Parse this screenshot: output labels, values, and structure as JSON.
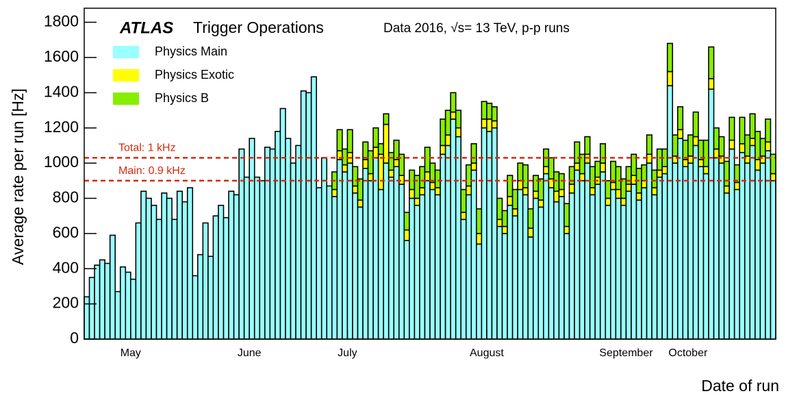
{
  "chart_data": {
    "type": "stacked_histogram",
    "experiment": "ATLAS",
    "title": "Trigger Operations",
    "annotation": "Data 2016, √s= 13 TeV, p-p runs",
    "y_label": "Average rate per run [Hz]",
    "x_label": "Date of run",
    "xlim": [
      0,
      134
    ],
    "xticks": [
      {
        "value": 9,
        "label": "May"
      },
      {
        "value": 32,
        "label": "June"
      },
      {
        "value": 51,
        "label": "July"
      },
      {
        "value": 78,
        "label": "August"
      },
      {
        "value": 105,
        "label": "September"
      },
      {
        "value": 117,
        "label": "October"
      }
    ],
    "ylim": [
      0,
      1880
    ],
    "yticks": [
      0,
      200,
      400,
      600,
      800,
      1000,
      1200,
      1400,
      1600,
      1800
    ],
    "reference_lines": [
      {
        "value": 1030,
        "label": "Total: 1 kHz",
        "color": "#d62a0a"
      },
      {
        "value": 900,
        "label": "Main: 0.9 kHz",
        "color": "#d62a0a"
      }
    ],
    "series": [
      {
        "name": "Physics Main",
        "color": "#99ffff",
        "values": [
          240,
          350,
          420,
          450,
          430,
          590,
          270,
          410,
          380,
          340,
          660,
          840,
          800,
          760,
          680,
          830,
          800,
          680,
          840,
          780,
          860,
          360,
          480,
          660,
          470,
          700,
          760,
          690,
          840,
          820,
          1080,
          920,
          1140,
          920,
          900,
          1090,
          1080,
          1180,
          1310,
          1140,
          1000,
          1100,
          1410,
          1400,
          1490,
          860,
          1030,
          870,
          810,
          1020,
          950,
          1000,
          830,
          750,
          970,
          900,
          1030,
          850,
          1000,
          920,
          980,
          880,
          560,
          800,
          760,
          820,
          900,
          850,
          820,
          1050,
          1100,
          1250,
          1150,
          680,
          820,
          960,
          540,
          1200,
          1180,
          1200,
          640,
          600,
          760,
          700,
          850,
          820,
          580,
          800,
          750,
          940,
          860,
          780,
          810,
          600,
          830,
          960,
          900,
          1000,
          820,
          880,
          950,
          760,
          850,
          800,
          760,
          840,
          880,
          790,
          860,
          1000,
          820,
          920,
          940,
          1440,
          1000,
          1140,
          980,
          1000,
          1100,
          980,
          940,
          1420,
          1030,
          1000,
          830,
          1080,
          850,
          1060,
          1000,
          1100,
          960,
          1000,
          1070,
          900
        ]
      },
      {
        "name": "Physics Exotic",
        "color": "#ffff00",
        "values": [
          0,
          0,
          0,
          0,
          0,
          0,
          0,
          0,
          0,
          0,
          0,
          0,
          0,
          0,
          0,
          0,
          0,
          0,
          0,
          0,
          0,
          0,
          0,
          0,
          0,
          0,
          0,
          0,
          0,
          0,
          0,
          0,
          0,
          0,
          0,
          0,
          0,
          0,
          0,
          0,
          0,
          0,
          0,
          0,
          0,
          0,
          0,
          0,
          40,
          50,
          40,
          60,
          40,
          40,
          50,
          40,
          60,
          200,
          220,
          40,
          40,
          50,
          60,
          50,
          40,
          40,
          50,
          40,
          40,
          50,
          60,
          40,
          50,
          40,
          50,
          40,
          60,
          50,
          70,
          40,
          40,
          40,
          50,
          40,
          50,
          40,
          50,
          40,
          40,
          40,
          50,
          60,
          40,
          40,
          50,
          40,
          40,
          50,
          40,
          40,
          50,
          40,
          40,
          50,
          40,
          40,
          50,
          40,
          40,
          50,
          40,
          40,
          40,
          80,
          40,
          50,
          40,
          40,
          50,
          40,
          40,
          60,
          50,
          40,
          40,
          50,
          40,
          50,
          40,
          40,
          60,
          40,
          50,
          40
        ]
      },
      {
        "name": "Physics B",
        "color": "#88ee00",
        "values": [
          0,
          0,
          0,
          0,
          0,
          0,
          0,
          0,
          0,
          0,
          0,
          0,
          0,
          0,
          0,
          0,
          0,
          0,
          0,
          0,
          0,
          0,
          0,
          0,
          0,
          0,
          0,
          0,
          0,
          0,
          0,
          0,
          0,
          0,
          0,
          0,
          0,
          0,
          0,
          0,
          0,
          0,
          0,
          0,
          0,
          0,
          0,
          0,
          100,
          120,
          90,
          130,
          110,
          120,
          100,
          130,
          110,
          60,
          60,
          100,
          110,
          120,
          100,
          110,
          130,
          120,
          140,
          110,
          100,
          150,
          140,
          110,
          100,
          130,
          120,
          110,
          140,
          100,
          90,
          80,
          120,
          90,
          120,
          110,
          100,
          130,
          110,
          90,
          120,
          100,
          120,
          110,
          90,
          130,
          100,
          120,
          110,
          100,
          120,
          90,
          110,
          100,
          120,
          130,
          110,
          100,
          120,
          140,
          90,
          110,
          100,
          120,
          100,
          160,
          120,
          130,
          110,
          120,
          140,
          110,
          150,
          180,
          120,
          110,
          140,
          130,
          100,
          150,
          120,
          140,
          160,
          100,
          130,
          110
        ]
      }
    ]
  }
}
